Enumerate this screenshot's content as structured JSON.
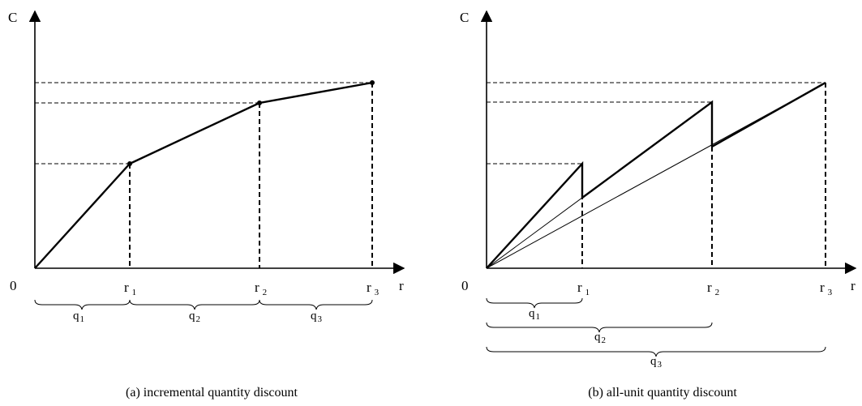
{
  "panel_a": {
    "caption": "(a) incremental quantity discount",
    "y_axis_label": "C",
    "x_axis_label": "r",
    "origin_label": "0",
    "breakpoints": [
      {
        "letter": "r",
        "sub": "1"
      },
      {
        "letter": "r",
        "sub": "2"
      },
      {
        "letter": "r",
        "sub": "3"
      }
    ],
    "intervals": [
      {
        "letter": "q",
        "sub": "1"
      },
      {
        "letter": "q",
        "sub": "2"
      },
      {
        "letter": "q",
        "sub": "3"
      }
    ]
  },
  "panel_b": {
    "caption": "(b) all-unit quantity discount",
    "y_axis_label": "C",
    "x_axis_label": "r",
    "origin_label": "0",
    "breakpoints": [
      {
        "letter": "r",
        "sub": "1"
      },
      {
        "letter": "r",
        "sub": "2"
      },
      {
        "letter": "r",
        "sub": "3"
      }
    ],
    "intervals": [
      {
        "letter": "q",
        "sub": "1"
      },
      {
        "letter": "q",
        "sub": "2"
      },
      {
        "letter": "q",
        "sub": "3"
      }
    ]
  }
}
